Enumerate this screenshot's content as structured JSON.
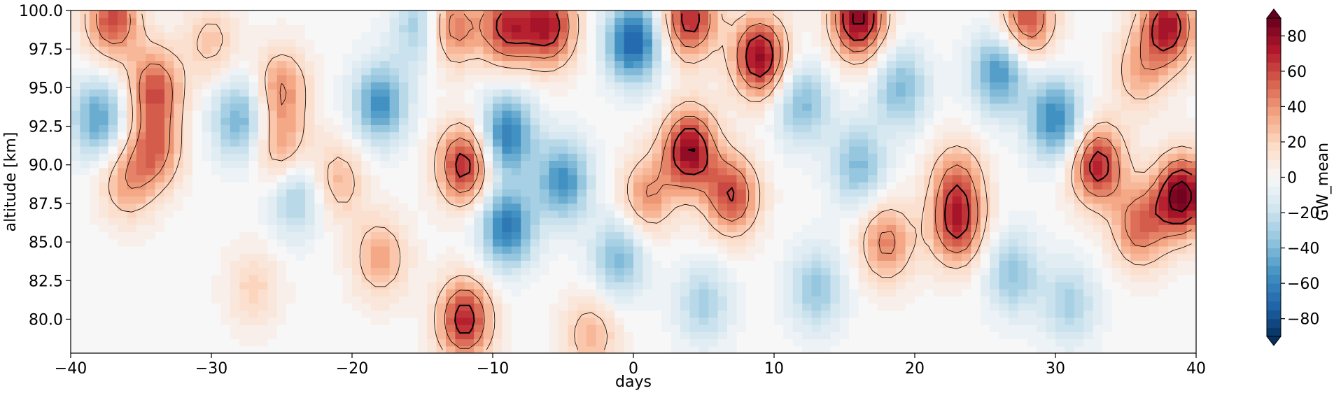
{
  "chart_data": {
    "type": "heatmap",
    "title": "",
    "xlabel": "days",
    "ylabel": "altitude [km]",
    "xlim": [
      -40,
      40
    ],
    "ylim": [
      77.8,
      100.0
    ],
    "x_ticks": [
      -40,
      -30,
      -20,
      -10,
      0,
      10,
      20,
      30,
      40
    ],
    "x_tick_labels": [
      "−40",
      "−30",
      "−20",
      "−10",
      "0",
      "10",
      "20",
      "30",
      "40"
    ],
    "y_ticks": [
      80.0,
      82.5,
      85.0,
      87.5,
      90.0,
      92.5,
      95.0,
      97.5,
      100.0
    ],
    "y_tick_labels": [
      "80.0",
      "82.5",
      "85.0",
      "87.5",
      "90.0",
      "92.5",
      "95.0",
      "97.5",
      "100.0"
    ],
    "colorbar": {
      "label": "GW_mean",
      "range": [
        -90,
        90
      ],
      "extend": "both",
      "ticks": [
        -80,
        -60,
        -40,
        -20,
        0,
        20,
        40,
        60,
        80
      ],
      "tick_labels": [
        "−80",
        "−60",
        "−40",
        "−20",
        "0",
        "20",
        "40",
        "60",
        "80"
      ],
      "colormap": "RdBu_r",
      "colors": [
        "#053061",
        "#2166ac",
        "#4393c3",
        "#92c5de",
        "#d1e5f0",
        "#f7f7f7",
        "#fddbc7",
        "#f4a582",
        "#d6604d",
        "#b2182b",
        "#67001f"
      ]
    },
    "contours": {
      "color": "#000000",
      "levels_thin": [
        20,
        40
      ],
      "levels_thick": [
        60,
        80,
        100,
        120,
        140,
        160
      ]
    },
    "features": [
      {
        "x": -37,
        "y": 99.5,
        "value": 60
      },
      {
        "x": -36,
        "y": 89,
        "value": 35
      },
      {
        "x": -34,
        "y": 95,
        "value": 55
      },
      {
        "x": -34,
        "y": 91,
        "value": 45
      },
      {
        "x": -38,
        "y": 93,
        "value": -50
      },
      {
        "x": -30,
        "y": 98,
        "value": 25
      },
      {
        "x": -28,
        "y": 93,
        "value": -45
      },
      {
        "x": -25,
        "y": 95,
        "value": 40
      },
      {
        "x": -25,
        "y": 91,
        "value": 35
      },
      {
        "x": -24,
        "y": 88,
        "value": -35
      },
      {
        "x": -21,
        "y": 89,
        "value": 30
      },
      {
        "x": -18,
        "y": 94,
        "value": -55
      },
      {
        "x": -18,
        "y": 84,
        "value": 35
      },
      {
        "x": -15,
        "y": 99,
        "value": -40
      },
      {
        "x": -13,
        "y": 99,
        "value": 55
      },
      {
        "x": -12,
        "y": 90,
        "value": 70
      },
      {
        "x": -12,
        "y": 80,
        "value": 70
      },
      {
        "x": -9,
        "y": 92,
        "value": -65
      },
      {
        "x": -9,
        "y": 86,
        "value": -65
      },
      {
        "x": -9,
        "y": 99,
        "value": 65
      },
      {
        "x": -6,
        "y": 99,
        "value": 70
      },
      {
        "x": -5,
        "y": 89,
        "value": -55
      },
      {
        "x": -3,
        "y": 79,
        "value": 30
      },
      {
        "x": 0,
        "y": 98,
        "value": -75
      },
      {
        "x": 1,
        "y": 88,
        "value": 40
      },
      {
        "x": 4,
        "y": 91,
        "value": 80
      },
      {
        "x": 4,
        "y": 99.5,
        "value": 70
      },
      {
        "x": 7,
        "y": 88,
        "value": 60
      },
      {
        "x": 9,
        "y": 97,
        "value": 80
      },
      {
        "x": 12,
        "y": 94,
        "value": -40
      },
      {
        "x": 16,
        "y": 99.5,
        "value": 85
      },
      {
        "x": 16,
        "y": 90,
        "value": -40
      },
      {
        "x": 19,
        "y": 95,
        "value": -40
      },
      {
        "x": 18,
        "y": 85,
        "value": 45
      },
      {
        "x": 23,
        "y": 86,
        "value": 60
      },
      {
        "x": 23,
        "y": 89,
        "value": 40
      },
      {
        "x": 26,
        "y": 96,
        "value": -55
      },
      {
        "x": 27,
        "y": 83,
        "value": -35
      },
      {
        "x": 28,
        "y": 99.5,
        "value": 60
      },
      {
        "x": 30,
        "y": 93,
        "value": -60
      },
      {
        "x": 33,
        "y": 90,
        "value": 70
      },
      {
        "x": 36,
        "y": 86,
        "value": 50
      },
      {
        "x": 39,
        "y": 88,
        "value": 90
      },
      {
        "x": 38,
        "y": 99,
        "value": 75
      },
      {
        "x": 36,
        "y": 96,
        "value": 30
      },
      {
        "x": 31,
        "y": 81,
        "value": -30
      },
      {
        "x": 13,
        "y": 82,
        "value": -35
      },
      {
        "x": 5,
        "y": 81,
        "value": -30
      },
      {
        "x": -27,
        "y": 82,
        "value": 20
      },
      {
        "x": -1,
        "y": 84,
        "value": -40
      }
    ]
  }
}
